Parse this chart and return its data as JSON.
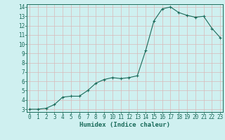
{
  "xlabel": "Humidex (Indice chaleur)",
  "x": [
    0,
    1,
    2,
    3,
    4,
    5,
    6,
    7,
    8,
    9,
    10,
    11,
    12,
    13,
    14,
    15,
    16,
    17,
    18,
    19,
    20,
    21,
    22,
    23
  ],
  "values": [
    3.0,
    3.0,
    3.1,
    3.5,
    4.3,
    4.4,
    4.4,
    5.0,
    5.8,
    6.2,
    6.4,
    6.3,
    6.4,
    6.6,
    9.3,
    12.5,
    13.8,
    14.0,
    13.4,
    13.1,
    12.9,
    13.0,
    11.7,
    10.7
  ],
  "line_color": "#1a6b5a",
  "marker_color": "#1a6b5a",
  "bg_color": "#cff0f0",
  "grid_color": "#d9b8b8",
  "ylim_min": 3,
  "ylim_max": 14,
  "xlim_min": 0,
  "xlim_max": 23,
  "yticks": [
    3,
    4,
    5,
    6,
    7,
    8,
    9,
    10,
    11,
    12,
    13,
    14
  ],
  "xticks": [
    0,
    1,
    2,
    3,
    4,
    5,
    6,
    7,
    8,
    9,
    10,
    11,
    12,
    13,
    14,
    15,
    16,
    17,
    18,
    19,
    20,
    21,
    22,
    23
  ],
  "xlabel_fontsize": 6.5,
  "tick_fontsize": 5.5,
  "marker_size": 2.5,
  "linewidth": 0.8
}
